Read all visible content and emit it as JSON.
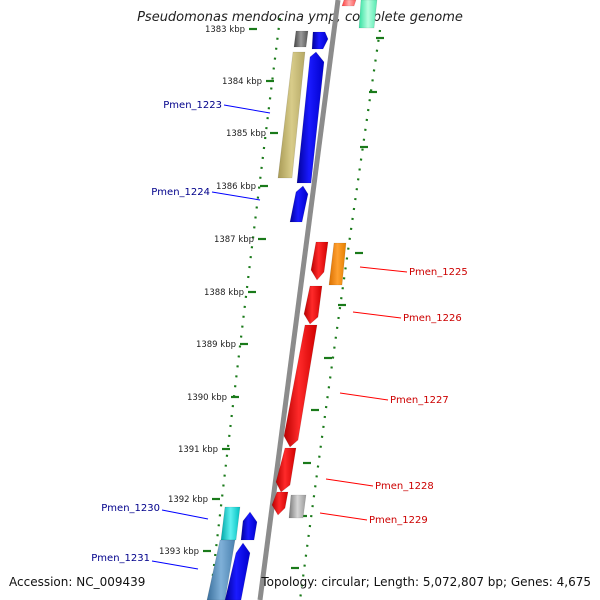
{
  "title": "Pseudomonas mendocina ymp, complete genome",
  "footer": {
    "accession": "Accession: NC_009439",
    "summary": "Topology: circular; Length: 5,072,807 bp; Genes: 4,675"
  },
  "colors": {
    "forward_strand": "#0000ff",
    "reverse_strand": "#ff0000",
    "forward_label": "#00008b",
    "reverse_label": "#cc0000",
    "tick": "#1a7a1a",
    "backbone": "#8c8c8c"
  },
  "tick_labels": [
    "1383 kbp",
    "1384 kbp",
    "1385 kbp",
    "1386 kbp",
    "1387 kbp",
    "1388 kbp",
    "1389 kbp",
    "1390 kbp",
    "1391 kbp",
    "1392 kbp",
    "1393 kbp"
  ],
  "forward_genes": [
    "Pmen_1223",
    "Pmen_1224",
    "Pmen_1230",
    "Pmen_1231"
  ],
  "reverse_genes": [
    "Pmen_1225",
    "Pmen_1226",
    "Pmen_1227",
    "Pmen_1228",
    "Pmen_1229"
  ]
}
